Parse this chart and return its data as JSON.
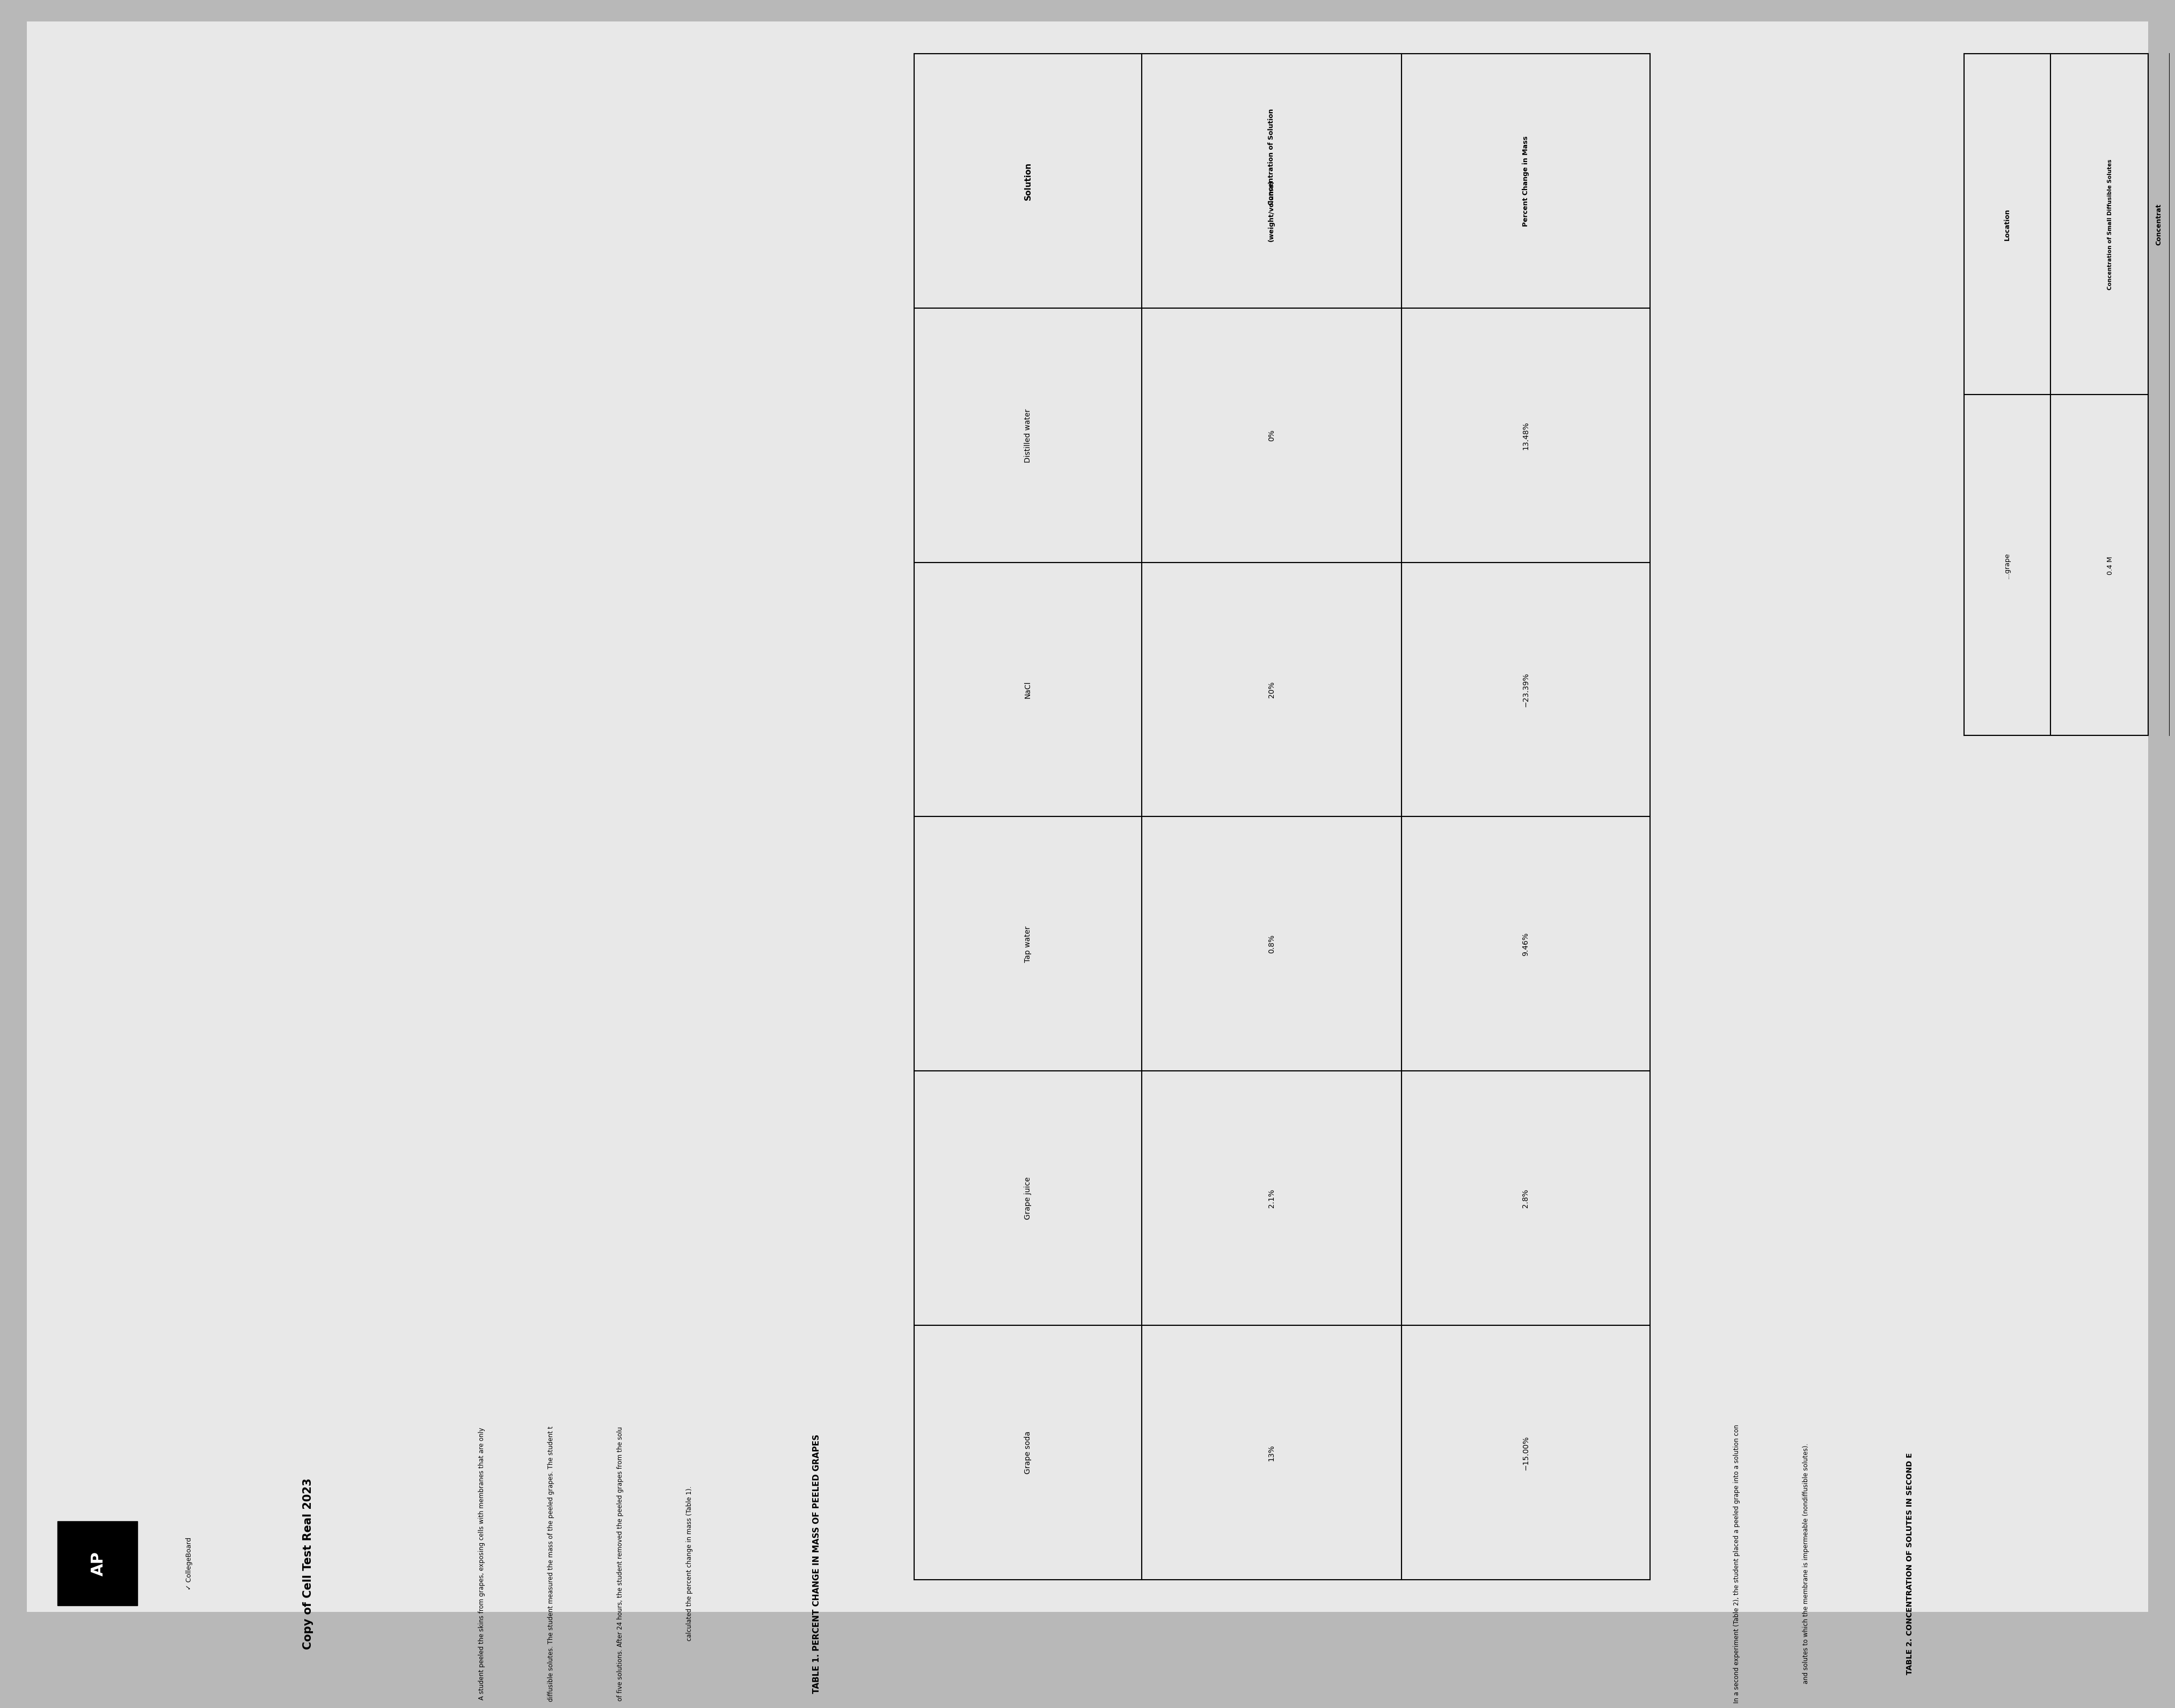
{
  "bg_color": "#b8b8b8",
  "paper_color": "#e8e8e8",
  "header_label": "AP",
  "collegeboard_label": "✓ CollegeBoard",
  "title": "Copy of Cell Test Real 2023",
  "paragraph1_lines": [
    "A student peeled the skins from grapes, exposing cells with membranes that are only",
    "diffusible solutes. The student measured the mass of the peeled grapes. The student t",
    "of five solutions. After 24 hours, the student removed the peeled grapes from the solu",
    "calculated the percent change in mass (Table 1)."
  ],
  "table1_title": "TABLE 1. PERCENT CHANGE IN MASS OF PEELED GRAPES",
  "table1_col1_header": "Solution",
  "table1_col2_header_line1": "Concentration of Solution",
  "table1_col2_header_line2": "(weight/volume)",
  "table1_col3_header": "Percent Change in Mass",
  "table1_rows": [
    [
      "Distilled water",
      "0%",
      "13.48%"
    ],
    [
      "NaCl",
      "20%",
      "−23.39%"
    ],
    [
      "Tap water",
      "0.8%",
      "9.46%"
    ],
    [
      "Grape juice",
      "2.1%",
      "2.8%"
    ],
    [
      "Grape soda",
      "13%",
      "−15.00%"
    ]
  ],
  "paragraph2_lines": [
    "In a second experiment (Table 2), the student placed a peeled grape into a solution con",
    "and solutes to which the membrane is impermeable (nondiffusible solutes)."
  ],
  "table2_title": "TABLE 2. CONCENTRATION OF SOLUTES IN SECOND E",
  "table2_col1_header": "Location",
  "table2_col2_header": "Concentration of Small Diffusible Solutes",
  "table2_col3_header": "Concentrat",
  "table2_row1_col1": "...grape",
  "table2_row1_col2": "0.4 M",
  "table2_row1_col3": ""
}
